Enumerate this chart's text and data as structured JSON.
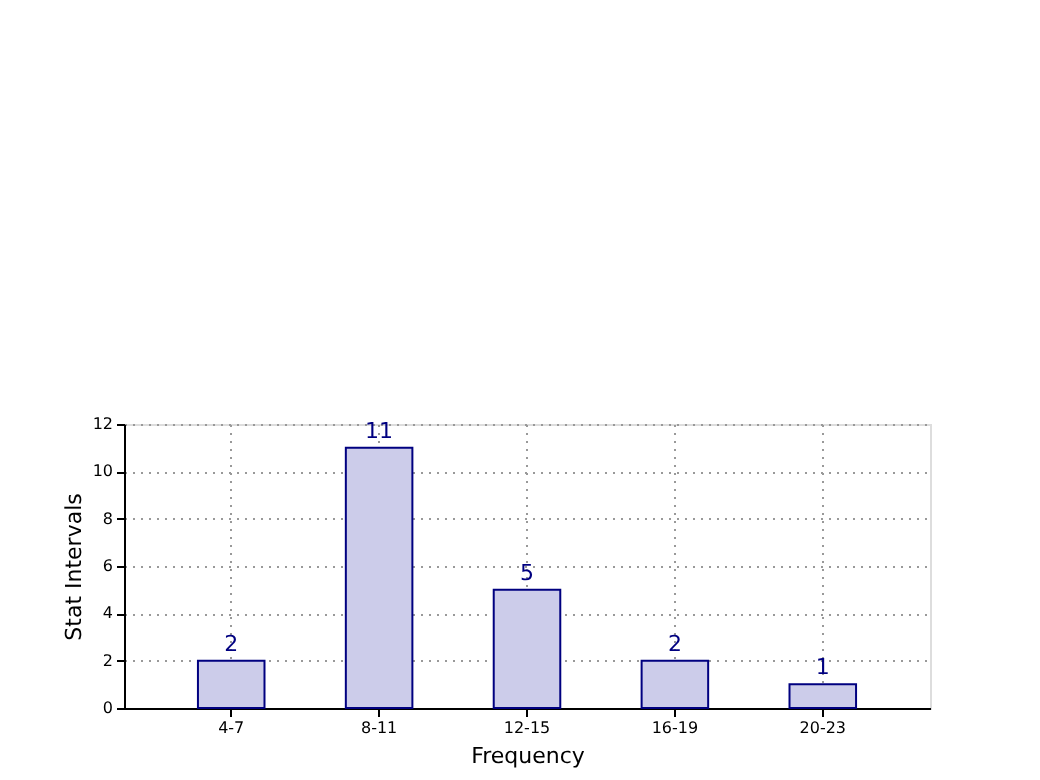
{
  "chart_data": {
    "type": "bar",
    "xlabel": "Frequency",
    "ylabel": "Stat Intervals",
    "categories": [
      "4-7",
      "8-11",
      "12-15",
      "16-19",
      "20-23"
    ],
    "values": [
      2,
      11,
      5,
      2,
      1
    ],
    "color": "#ccccea",
    "ylim": [
      0,
      12
    ],
    "yticks": [
      0,
      2,
      4,
      6,
      8,
      10,
      12
    ],
    "grid": true,
    "data_labels": true
  }
}
